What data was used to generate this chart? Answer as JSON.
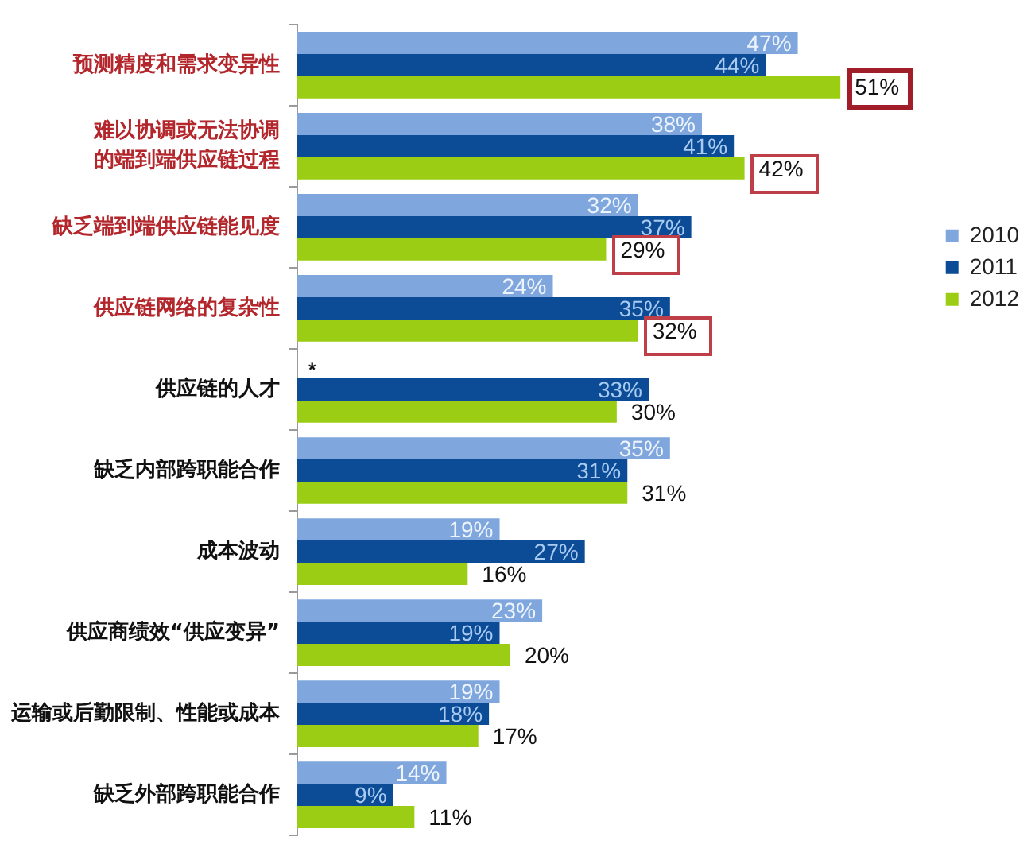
{
  "chart_data": {
    "type": "bar",
    "orientation": "horizontal",
    "categories": [
      "预测精度和需求变异性",
      "难以协调或无法协调的端到端供应链过程",
      "缺乏端到端供应链能见度",
      "供应链网络的复杂性",
      "供应链的人才",
      "缺乏内部跨职能合作",
      "成本波动",
      "供应商绩效“供应变异”",
      "运输或后勤限制、性能或成本",
      "缺乏外部跨职能合作"
    ],
    "series": [
      {
        "name": "2010",
        "color": "#7fa7dd",
        "values": [
          47,
          38,
          32,
          24,
          null,
          35,
          19,
          23,
          19,
          14
        ],
        "value_labels": [
          "47%",
          "38%",
          "32%",
          "24%",
          null,
          "35%",
          "19%",
          "23%",
          "19%",
          "14%"
        ]
      },
      {
        "name": "2011",
        "color": "#0c4b96",
        "values": [
          44,
          41,
          37,
          35,
          33,
          31,
          27,
          19,
          18,
          9
        ],
        "value_labels": [
          "44%",
          "41%",
          "37%",
          "35%",
          "33%",
          "31%",
          "27%",
          "19%",
          "18%",
          "9%"
        ]
      },
      {
        "name": "2012",
        "color": "#9acd14",
        "values": [
          51,
          42,
          29,
          32,
          30,
          31,
          16,
          20,
          17,
          11
        ],
        "value_labels": [
          "51%",
          "42%",
          "29%",
          "32%",
          "30%",
          "31%",
          "16%",
          "20%",
          "17%",
          "11%"
        ]
      }
    ],
    "annotations": [
      {
        "text": "*",
        "x": 0,
        "y": "供应链的人才"
      }
    ],
    "legend": "right",
    "tick_labels": "y"
  }
}
